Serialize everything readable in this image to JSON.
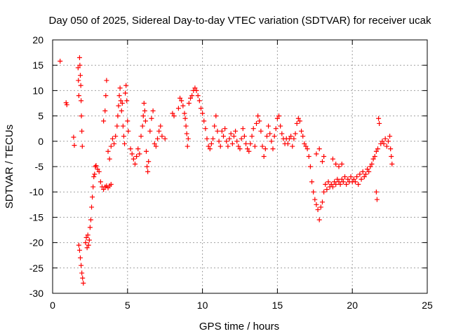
{
  "chart_data": {
    "type": "scatter",
    "title": "Day 050 of 2025, Sidereal Day-to-day VTEC variation (SDTVAR) for receiver ucak",
    "xlabel": "GPS time / hours",
    "ylabel": "SDTVAR / TECUs",
    "xlim": [
      0,
      25
    ],
    "ylim": [
      -30,
      20
    ],
    "xticks": [
      0,
      5,
      10,
      15,
      20,
      25
    ],
    "yticks": [
      -30,
      -25,
      -20,
      -15,
      -10,
      -5,
      0,
      5,
      10,
      15,
      20
    ],
    "xtick_labels": [
      "0",
      "5",
      "10",
      "15",
      "20",
      "25"
    ],
    "ytick_labels": [
      "-30",
      "-25",
      "-20",
      "-15",
      "-10",
      "-5",
      "0",
      "5",
      "10",
      "15",
      "20"
    ],
    "grid": true,
    "marker": "+",
    "color": "#ff0000",
    "series": [
      {
        "name": "SDTVAR",
        "points": [
          [
            0.5,
            15.8
          ],
          [
            0.9,
            7.6
          ],
          [
            0.95,
            7.2
          ],
          [
            1.4,
            0.8
          ],
          [
            1.45,
            -0.8
          ],
          [
            1.7,
            14.5
          ],
          [
            1.72,
            12.0
          ],
          [
            1.75,
            9.0
          ],
          [
            1.8,
            16.5
          ],
          [
            1.82,
            15.0
          ],
          [
            1.85,
            13.0
          ],
          [
            1.88,
            11.0
          ],
          [
            1.9,
            8.0
          ],
          [
            1.92,
            5.0
          ],
          [
            1.95,
            2.0
          ],
          [
            1.98,
            -1.0
          ],
          [
            1.75,
            -20.5
          ],
          [
            1.8,
            -21.5
          ],
          [
            1.85,
            -23.0
          ],
          [
            1.9,
            -24.5
          ],
          [
            1.95,
            -26.0
          ],
          [
            2.0,
            -27.0
          ],
          [
            2.05,
            -28.0
          ],
          [
            2.2,
            -20.0
          ],
          [
            2.25,
            -19.0
          ],
          [
            2.3,
            -21.0
          ],
          [
            2.35,
            -18.5
          ],
          [
            2.4,
            -20.5
          ],
          [
            2.45,
            -19.5
          ],
          [
            2.5,
            -17.0
          ],
          [
            2.55,
            -15.5
          ],
          [
            2.6,
            -13.0
          ],
          [
            2.65,
            -11.0
          ],
          [
            2.7,
            -9.0
          ],
          [
            2.75,
            -7.0
          ],
          [
            2.8,
            -6.5
          ],
          [
            2.85,
            -5.0
          ],
          [
            2.9,
            -4.8
          ],
          [
            3.0,
            -5.5
          ],
          [
            3.1,
            -6.0
          ],
          [
            3.2,
            -8.0
          ],
          [
            3.3,
            -9.0
          ],
          [
            3.4,
            -9.5
          ],
          [
            3.5,
            -9.0
          ],
          [
            3.6,
            -8.8
          ],
          [
            3.7,
            -9.2
          ],
          [
            3.8,
            -8.8
          ],
          [
            3.9,
            -8.5
          ],
          [
            3.4,
            4.0
          ],
          [
            3.5,
            6.0
          ],
          [
            3.55,
            9.0
          ],
          [
            3.6,
            12.0
          ],
          [
            3.7,
            -2.0
          ],
          [
            3.8,
            -3.5
          ],
          [
            3.9,
            -1.0
          ],
          [
            4.0,
            0.5
          ],
          [
            4.1,
            -0.5
          ],
          [
            4.2,
            1.0
          ],
          [
            4.3,
            3.0
          ],
          [
            4.35,
            5.0
          ],
          [
            4.4,
            7.0
          ],
          [
            4.45,
            9.0
          ],
          [
            4.5,
            10.5
          ],
          [
            4.55,
            8.0
          ],
          [
            4.6,
            6.0
          ],
          [
            4.65,
            7.5
          ],
          [
            4.7,
            3.0
          ],
          [
            4.75,
            1.0
          ],
          [
            4.8,
            -0.5
          ],
          [
            4.85,
            9.5
          ],
          [
            4.9,
            11.0
          ],
          [
            4.95,
            8.0
          ],
          [
            5.0,
            4.0
          ],
          [
            5.05,
            2.0
          ],
          [
            5.2,
            -1.5
          ],
          [
            5.3,
            -2.5
          ],
          [
            5.4,
            -3.5
          ],
          [
            5.5,
            -4.5
          ],
          [
            5.6,
            -3.0
          ],
          [
            5.7,
            -1.5
          ],
          [
            5.8,
            -2.5
          ],
          [
            5.9,
            1.0
          ],
          [
            6.0,
            3.0
          ],
          [
            6.05,
            5.0
          ],
          [
            6.1,
            7.5
          ],
          [
            6.15,
            6.0
          ],
          [
            6.2,
            4.0
          ],
          [
            6.25,
            -2.0
          ],
          [
            6.3,
            -5.0
          ],
          [
            6.35,
            -6.0
          ],
          [
            6.4,
            -4.0
          ],
          [
            6.5,
            2.0
          ],
          [
            6.6,
            4.5
          ],
          [
            6.7,
            6.0
          ],
          [
            6.8,
            -0.5
          ],
          [
            6.9,
            -1.0
          ],
          [
            7.0,
            0.5
          ],
          [
            7.1,
            2.0
          ],
          [
            7.2,
            3.0
          ],
          [
            7.3,
            1.0
          ],
          [
            7.5,
            0.5
          ],
          [
            8.0,
            5.5
          ],
          [
            8.1,
            5.0
          ],
          [
            8.4,
            6.5
          ],
          [
            8.5,
            8.5
          ],
          [
            8.6,
            8.0
          ],
          [
            8.7,
            7.0
          ],
          [
            8.8,
            5.5
          ],
          [
            8.85,
            4.5
          ],
          [
            8.9,
            3.0
          ],
          [
            8.95,
            1.5
          ],
          [
            9.0,
            -1.0
          ],
          [
            9.05,
            0.5
          ],
          [
            9.1,
            7.5
          ],
          [
            9.2,
            8.5
          ],
          [
            9.3,
            9.0
          ],
          [
            9.4,
            10.0
          ],
          [
            9.5,
            10.5
          ],
          [
            9.6,
            10.0
          ],
          [
            9.7,
            9.0
          ],
          [
            9.8,
            8.0
          ],
          [
            9.9,
            6.5
          ],
          [
            10.0,
            5.5
          ],
          [
            10.1,
            4.0
          ],
          [
            10.2,
            2.5
          ],
          [
            10.3,
            0.5
          ],
          [
            10.4,
            -1.0
          ],
          [
            10.5,
            -1.5
          ],
          [
            10.6,
            -0.5
          ],
          [
            10.7,
            0.5
          ],
          [
            10.8,
            3.0
          ],
          [
            10.9,
            5.0
          ],
          [
            11.0,
            2.0
          ],
          [
            11.1,
            0.0
          ],
          [
            11.2,
            -1.0
          ],
          [
            11.3,
            2.0
          ],
          [
            11.4,
            1.0
          ],
          [
            11.5,
            2.5
          ],
          [
            11.6,
            0.0
          ],
          [
            11.7,
            -1.0
          ],
          [
            11.8,
            0.5
          ],
          [
            11.9,
            1.5
          ],
          [
            12.0,
            -0.5
          ],
          [
            12.1,
            1.0
          ],
          [
            12.2,
            2.0
          ],
          [
            12.3,
            0.0
          ],
          [
            12.4,
            -1.0
          ],
          [
            12.5,
            -1.5
          ],
          [
            12.6,
            0.5
          ],
          [
            12.7,
            2.5
          ],
          [
            12.8,
            1.0
          ],
          [
            12.9,
            -0.5
          ],
          [
            13.0,
            -1.5
          ],
          [
            13.1,
            -2.0
          ],
          [
            13.2,
            -0.5
          ],
          [
            13.3,
            1.0
          ],
          [
            13.4,
            2.5
          ],
          [
            13.5,
            -1.0
          ],
          [
            13.6,
            3.5
          ],
          [
            13.7,
            5.0
          ],
          [
            13.8,
            4.0
          ],
          [
            13.9,
            2.0
          ],
          [
            14.0,
            -1.0
          ],
          [
            14.1,
            -3.0
          ],
          [
            14.2,
            -1.5
          ],
          [
            14.3,
            1.0
          ],
          [
            14.4,
            3.0
          ],
          [
            14.5,
            1.5
          ],
          [
            14.6,
            0.0
          ],
          [
            14.7,
            -1.5
          ],
          [
            14.8,
            1.0
          ],
          [
            14.9,
            2.5
          ],
          [
            15.0,
            4.5
          ],
          [
            15.1,
            5.0
          ],
          [
            15.2,
            3.0
          ],
          [
            15.3,
            1.5
          ],
          [
            15.4,
            0.5
          ],
          [
            15.5,
            -0.5
          ],
          [
            15.6,
            0.5
          ],
          [
            15.7,
            -0.5
          ],
          [
            15.8,
            0.5
          ],
          [
            15.9,
            1.0
          ],
          [
            16.0,
            -1.0
          ],
          [
            16.1,
            0.5
          ],
          [
            16.2,
            1.5
          ],
          [
            16.3,
            3.5
          ],
          [
            16.4,
            4.5
          ],
          [
            16.5,
            4.0
          ],
          [
            16.6,
            2.0
          ],
          [
            16.7,
            1.0
          ],
          [
            16.8,
            -0.5
          ],
          [
            16.9,
            -1.0
          ],
          [
            17.0,
            -1.5
          ],
          [
            17.1,
            -3.0
          ],
          [
            17.2,
            -5.0
          ],
          [
            17.3,
            -8.0
          ],
          [
            17.4,
            -10.0
          ],
          [
            17.5,
            -11.5
          ],
          [
            17.6,
            -12.5
          ],
          [
            17.7,
            -13.5
          ],
          [
            17.8,
            -15.5
          ],
          [
            17.9,
            -13.0
          ],
          [
            18.0,
            -12.0
          ],
          [
            18.1,
            -10.0
          ],
          [
            18.2,
            -8.5
          ],
          [
            18.3,
            -9.5
          ],
          [
            18.4,
            -8.0
          ],
          [
            18.5,
            -9.0
          ],
          [
            18.6,
            -8.5
          ],
          [
            18.7,
            -9.0
          ],
          [
            18.8,
            -8.0
          ],
          [
            18.9,
            -8.5
          ],
          [
            19.0,
            -7.5
          ],
          [
            19.1,
            -8.0
          ],
          [
            19.2,
            -8.5
          ],
          [
            19.3,
            -7.5
          ],
          [
            19.4,
            -8.0
          ],
          [
            19.5,
            -7.0
          ],
          [
            19.6,
            -8.5
          ],
          [
            19.7,
            -7.5
          ],
          [
            19.8,
            -8.0
          ],
          [
            19.9,
            -7.0
          ],
          [
            20.0,
            -8.0
          ],
          [
            20.1,
            -7.5
          ],
          [
            20.2,
            -8.0
          ],
          [
            20.3,
            -7.0
          ],
          [
            20.4,
            -8.5
          ],
          [
            20.5,
            -6.5
          ],
          [
            20.6,
            -7.5
          ],
          [
            20.7,
            -6.0
          ],
          [
            20.8,
            -7.0
          ],
          [
            20.9,
            -6.5
          ],
          [
            21.0,
            -5.5
          ],
          [
            21.1,
            -6.0
          ],
          [
            21.2,
            -5.0
          ],
          [
            21.3,
            -4.5
          ],
          [
            21.4,
            -3.5
          ],
          [
            21.5,
            -3.0
          ],
          [
            21.6,
            -2.0
          ],
          [
            21.7,
            -1.5
          ],
          [
            21.75,
            4.5
          ],
          [
            21.8,
            3.5
          ],
          [
            21.9,
            -0.5
          ],
          [
            22.0,
            0.0
          ],
          [
            22.1,
            -0.5
          ],
          [
            22.2,
            0.5
          ],
          [
            22.3,
            -1.0
          ],
          [
            22.4,
            0.0
          ],
          [
            22.5,
            1.0
          ],
          [
            22.55,
            -1.5
          ],
          [
            22.6,
            -3.0
          ],
          [
            22.65,
            -4.5
          ],
          [
            21.6,
            -10.0
          ],
          [
            21.65,
            -11.5
          ],
          [
            18.0,
            -4.0
          ],
          [
            18.1,
            -3.0
          ],
          [
            17.6,
            -2.5
          ],
          [
            17.8,
            -1.5
          ],
          [
            18.7,
            -3.5
          ],
          [
            18.9,
            -4.5
          ],
          [
            19.1,
            -5.0
          ],
          [
            19.3,
            -4.5
          ]
        ]
      }
    ]
  }
}
